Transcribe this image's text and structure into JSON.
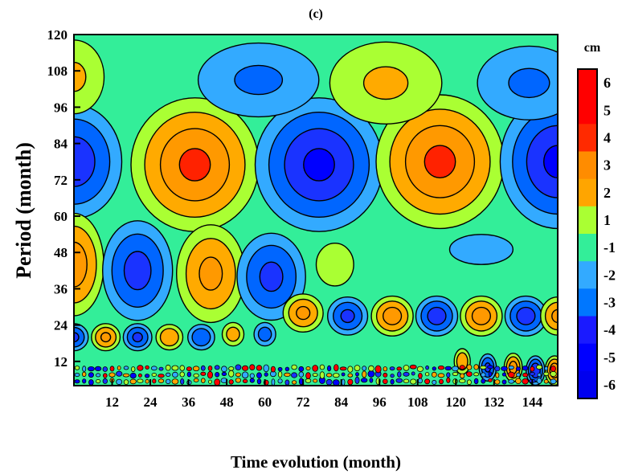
{
  "chart_data": {
    "type": "heatmap",
    "title": "(c)",
    "xlabel": "Time evolution (month)",
    "ylabel": "Period (month)",
    "xlim": [
      0,
      152
    ],
    "ylim": [
      4,
      120
    ],
    "xticks": [
      12,
      24,
      36,
      48,
      60,
      72,
      84,
      96,
      108,
      120,
      132,
      144
    ],
    "yticks": [
      12,
      24,
      36,
      48,
      60,
      72,
      84,
      96,
      108,
      120
    ],
    "colorbar": {
      "unit": "cm",
      "labels": [
        "6",
        "5",
        "4",
        "3",
        "2",
        "1",
        "-1",
        "-2",
        "-3",
        "-4",
        "-5",
        "-6"
      ],
      "colors": [
        "#ff0000",
        "#ff0000",
        "#ff2a00",
        "#ff8c00",
        "#ffa500",
        "#aaff33",
        "#33ee99",
        "#33aaff",
        "#0077ff",
        "#1a1aff",
        "#0000ff",
        "#0000ee"
      ]
    },
    "background_color": "#33ee99",
    "blobs": [
      {
        "x": 0,
        "y": 78,
        "v": -3.5,
        "sx": 8,
        "sy": 10
      },
      {
        "x": 38,
        "y": 77,
        "v": 4.5,
        "sx": 10,
        "sy": 11
      },
      {
        "x": 77,
        "y": 77,
        "v": -4.5,
        "sx": 10,
        "sy": 11
      },
      {
        "x": 115,
        "y": 78,
        "v": 4.5,
        "sx": 10,
        "sy": 11
      },
      {
        "x": 152,
        "y": 78,
        "v": -4.5,
        "sx": 9,
        "sy": 11
      },
      {
        "x": 0,
        "y": 106,
        "v": 1.5,
        "sx": 7,
        "sy": 9
      },
      {
        "x": 58,
        "y": 105,
        "v": -1.5,
        "sx": 14,
        "sy": 9
      },
      {
        "x": 98,
        "y": 104,
        "v": 1.5,
        "sx": 13,
        "sy": 10
      },
      {
        "x": 143,
        "y": 104,
        "v": -1.5,
        "sx": 12,
        "sy": 9
      },
      {
        "x": 0,
        "y": 44,
        "v": 3.5,
        "sx": 5,
        "sy": 9
      },
      {
        "x": 20,
        "y": 42,
        "v": -3.2,
        "sx": 6,
        "sy": 9
      },
      {
        "x": 43,
        "y": 41,
        "v": 3.0,
        "sx": 6,
        "sy": 9
      },
      {
        "x": 62,
        "y": 40,
        "v": -3.0,
        "sx": 6,
        "sy": 8
      },
      {
        "x": 82,
        "y": 44,
        "v": 1.2,
        "sx": 5,
        "sy": 6
      },
      {
        "x": 128,
        "y": 49,
        "v": -1.3,
        "sx": 8,
        "sy": 4
      },
      {
        "x": 72,
        "y": 28,
        "v": 3.0,
        "sx": 3.5,
        "sy": 3.5
      },
      {
        "x": 86,
        "y": 27,
        "v": -3.0,
        "sx": 3.5,
        "sy": 3.5
      },
      {
        "x": 100,
        "y": 27,
        "v": 3.5,
        "sx": 3.5,
        "sy": 3.5
      },
      {
        "x": 114,
        "y": 27,
        "v": -3.5,
        "sx": 3.5,
        "sy": 3.5
      },
      {
        "x": 128,
        "y": 27,
        "v": 3.5,
        "sx": 3.5,
        "sy": 3.5
      },
      {
        "x": 142,
        "y": 27,
        "v": -3.5,
        "sx": 3.5,
        "sy": 3.5
      },
      {
        "x": 152,
        "y": 27,
        "v": 3.0,
        "sx": 3.0,
        "sy": 3.5
      },
      {
        "x": 0,
        "y": 20,
        "v": -3.0,
        "sx": 2.5,
        "sy": 2.5
      },
      {
        "x": 10,
        "y": 20,
        "v": 3.0,
        "sx": 2.5,
        "sy": 2.5
      },
      {
        "x": 20,
        "y": 20,
        "v": -3.0,
        "sx": 2.5,
        "sy": 2.5
      },
      {
        "x": 30,
        "y": 20,
        "v": 2.5,
        "sx": 2.5,
        "sy": 2.5
      },
      {
        "x": 40,
        "y": 20,
        "v": -2.5,
        "sx": 2.5,
        "sy": 2.5
      },
      {
        "x": 50,
        "y": 21,
        "v": 2.0,
        "sx": 2.2,
        "sy": 2.5
      },
      {
        "x": 60,
        "y": 21,
        "v": -2.0,
        "sx": 2.2,
        "sy": 2.5
      },
      {
        "x": 122,
        "y": 12,
        "v": 2.5,
        "sx": 1.5,
        "sy": 2.5
      },
      {
        "x": 130,
        "y": 10,
        "v": -3.0,
        "sx": 1.5,
        "sy": 2.5
      },
      {
        "x": 138,
        "y": 10,
        "v": 3.5,
        "sx": 1.5,
        "sy": 2.5
      },
      {
        "x": 145,
        "y": 9,
        "v": -4.0,
        "sx": 1.5,
        "sy": 2.5
      },
      {
        "x": 151,
        "y": 9,
        "v": 4.0,
        "sx": 1.5,
        "sy": 2.5
      }
    ]
  }
}
